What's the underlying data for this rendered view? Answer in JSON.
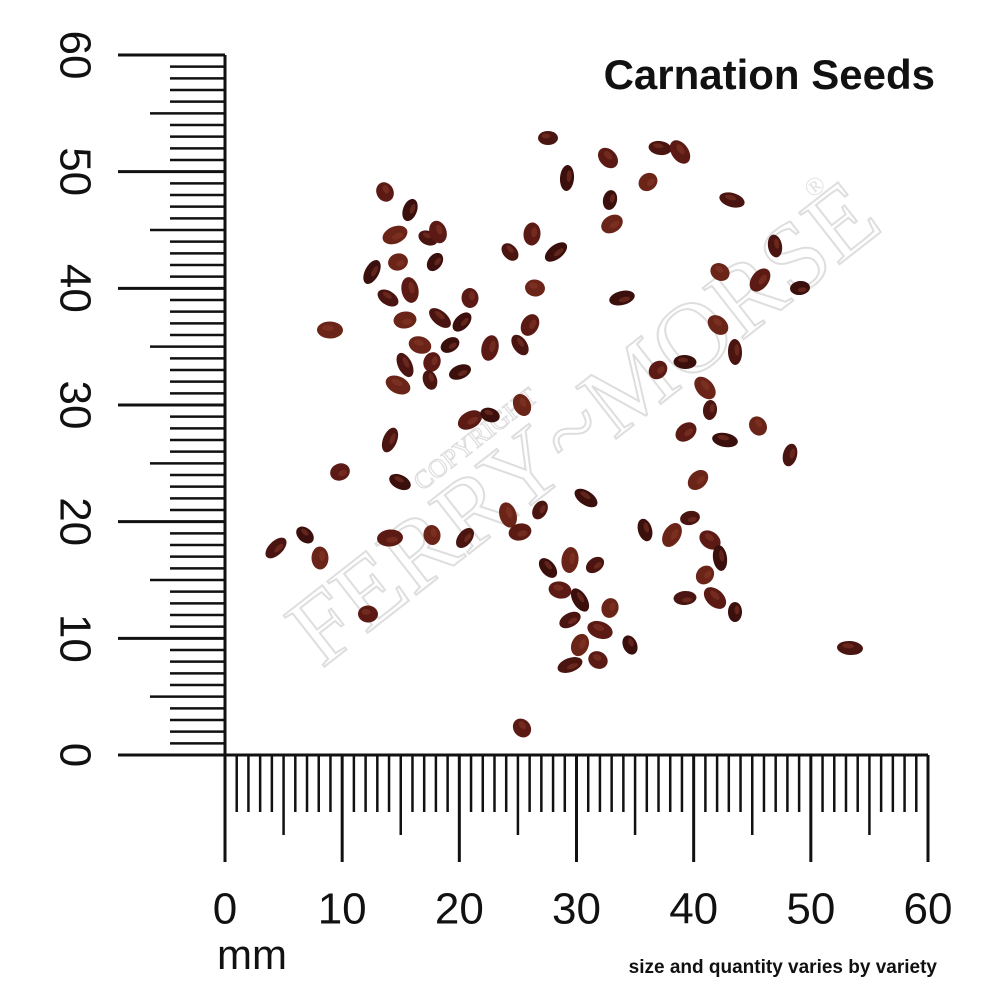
{
  "title": "Carnation Seeds",
  "note": "size and quantity varies by variety",
  "ruler": {
    "unit": "mm",
    "labels": [
      0,
      10,
      20,
      30,
      40,
      50,
      60
    ]
  },
  "watermark": {
    "brand": "FERRY~MORSE",
    "copyright": "COPYRIGHT",
    "mark": "®"
  }
}
